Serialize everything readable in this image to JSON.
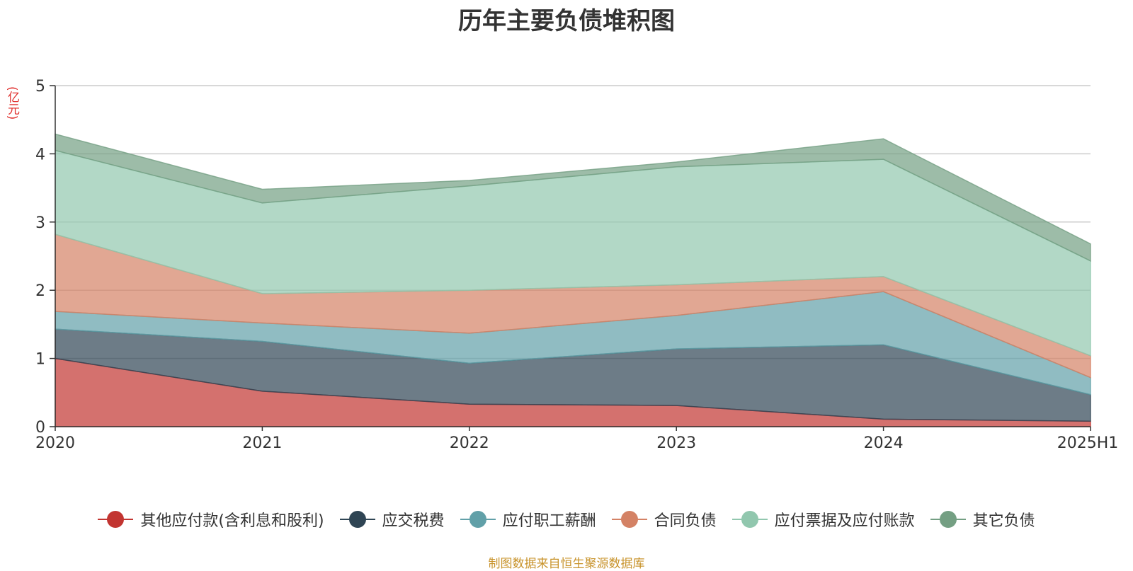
{
  "title": "历年主要负债堆积图",
  "unit": "(亿元)",
  "source": "制图数据来自恒生聚源数据库",
  "chart_data": {
    "type": "area",
    "stacked": true,
    "categories": [
      "2020",
      "2021",
      "2022",
      "2023",
      "2024",
      "2025H1"
    ],
    "ylim": [
      0,
      5
    ],
    "yticks": [
      0,
      1,
      2,
      3,
      4,
      5
    ],
    "grid": true,
    "legend_position": "bottom",
    "series": [
      {
        "name": "其他应付款(含利息和股利)",
        "color": "#c23531",
        "values": [
          1.0,
          0.52,
          0.33,
          0.31,
          0.11,
          0.08
        ]
      },
      {
        "name": "应交税费",
        "color": "#2f4554",
        "values": [
          0.43,
          0.73,
          0.6,
          0.83,
          1.09,
          0.39
        ]
      },
      {
        "name": "应付职工薪酬",
        "color": "#61a0a8",
        "values": [
          0.26,
          0.27,
          0.44,
          0.49,
          0.78,
          0.25
        ]
      },
      {
        "name": "合同负债",
        "color": "#d48265",
        "values": [
          1.13,
          0.43,
          0.63,
          0.45,
          0.22,
          0.32
        ]
      },
      {
        "name": "应付票据及应付账款",
        "color": "#91c7ae",
        "values": [
          1.23,
          1.33,
          1.53,
          1.73,
          1.72,
          1.39
        ]
      },
      {
        "name": "其它负债",
        "color": "#749f83",
        "values": [
          0.24,
          0.2,
          0.08,
          0.07,
          0.3,
          0.25
        ]
      }
    ]
  }
}
